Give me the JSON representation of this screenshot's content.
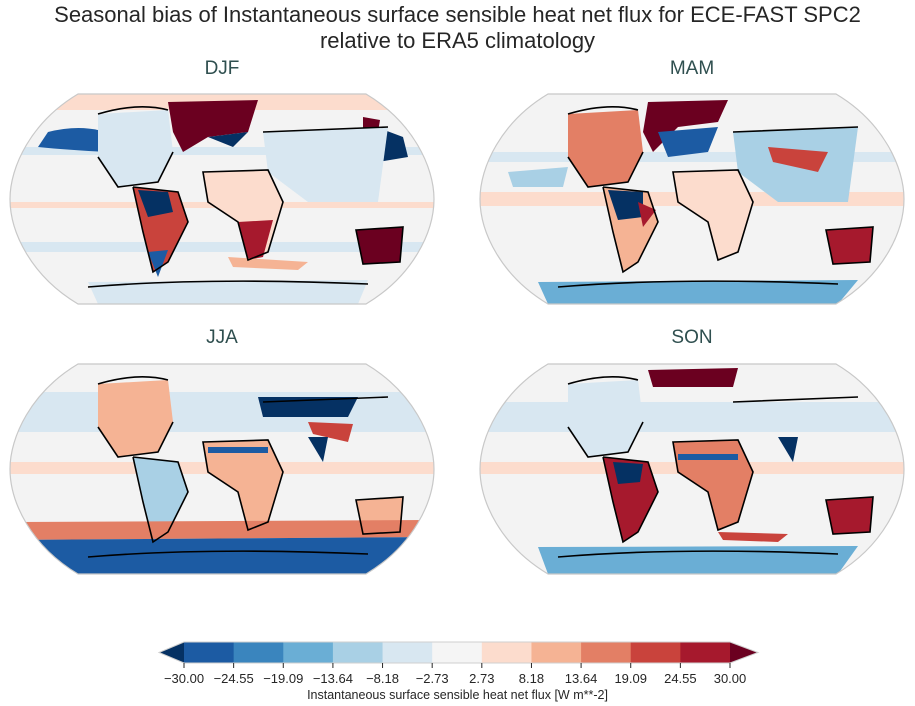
{
  "title": {
    "line1": "Seasonal bias of Instantaneous surface sensible heat net flux for ECE-FAST SPC2",
    "line2": "relative to ERA5 climatology"
  },
  "panels": [
    {
      "label": "DJF"
    },
    {
      "label": "MAM"
    },
    {
      "label": "JJA"
    },
    {
      "label": "SON"
    }
  ],
  "colorbar": {
    "label": "Instantaneous surface sensible heat net flux [W m**-2]",
    "ticks": [
      "−30.00",
      "−24.55",
      "−19.09",
      "−13.64",
      "−8.18",
      "−2.73",
      "2.73",
      "8.18",
      "13.64",
      "19.09",
      "24.55",
      "30.00"
    ],
    "colors": [
      "#1c5ba3",
      "#3a85be",
      "#6aaed5",
      "#a9d0e5",
      "#d8e7f1",
      "#f5f5f5",
      "#fcdccd",
      "#f5b394",
      "#e37f65",
      "#c9433c",
      "#a6192d"
    ],
    "under_color": "#053163",
    "over_color": "#6b0020",
    "extend": "both"
  },
  "chart_data": {
    "type": "heatmap",
    "title": "Seasonal bias of Instantaneous surface sensible heat net flux for ECE-FAST SPC2 relative to ERA5 climatology",
    "projection": "Robinson (global map)",
    "subplots": [
      "DJF",
      "MAM",
      "JJA",
      "SON"
    ],
    "colorbar_label": "Instantaneous surface sensible heat net flux [W m**-2]",
    "levels": [
      -30.0,
      -24.55,
      -19.09,
      -13.64,
      -8.18,
      -2.73,
      2.73,
      8.18,
      13.64,
      19.09,
      24.55,
      30.0
    ],
    "vmin": -30,
    "vmax": 30,
    "colormap": "RdBu_r",
    "extend": "both",
    "notable_features": {
      "DJF": "Strong positive bias over Nordic Seas/Barents, Gulf Stream, Australia, southern Africa; strong negative over Amazon, Kuroshio, N Pacific",
      "MAM": "Strong negative Amazon; positive Australia, eastern Brazil, Barents Sea; negative Kuroshio",
      "JJA": "Strong negative central Eurasia band and India; positive North America, Sahara, Southern Ocean band; negative Antarctic coast",
      "SON": "Positive S America, Africa, Australia, Barents; negative Amazon, India, Sahel band"
    }
  }
}
